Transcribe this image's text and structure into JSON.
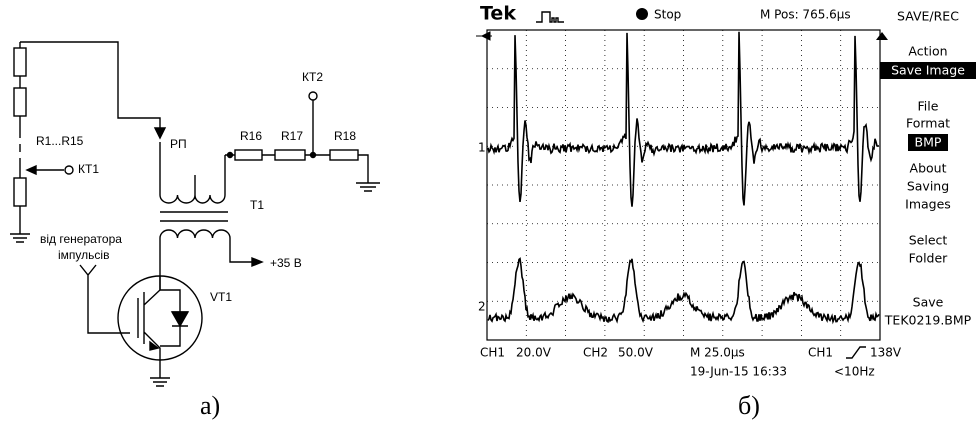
{
  "circuit": {
    "labels": [
      "R1...R15",
      "КТ1",
      "КТ2",
      "РП",
      "R16",
      "R17",
      "R18",
      "Т1",
      "від генератора",
      "імпульсів",
      "+35 В",
      "VT1"
    ]
  },
  "oscilloscope": {
    "header": {
      "brand": "Tek",
      "state": "Stop",
      "position": "M Pos: 765.6µs"
    },
    "menu": {
      "title": "SAVE/REC",
      "items": [
        [
          "Action",
          "Save Image"
        ],
        [
          "File",
          "Format",
          "BMP"
        ],
        [
          "About",
          "Saving",
          "Images"
        ],
        [
          "Select",
          "Folder"
        ],
        [
          "Save",
          "TEK0219.BMP"
        ]
      ]
    },
    "channel_markers": [
      "1",
      "2"
    ],
    "footer": {
      "ch1": "CH1",
      "ch1_scale": "20.0V",
      "ch2": "CH2",
      "ch2_scale": "50.0V",
      "timebase": "M 25.0µs",
      "trigger_source": "CH1",
      "trigger_level": "138V",
      "datetime": "19-Jun-15 16:33",
      "frequency": "<10Hz"
    }
  },
  "captions": [
    "а)",
    "б)"
  ]
}
